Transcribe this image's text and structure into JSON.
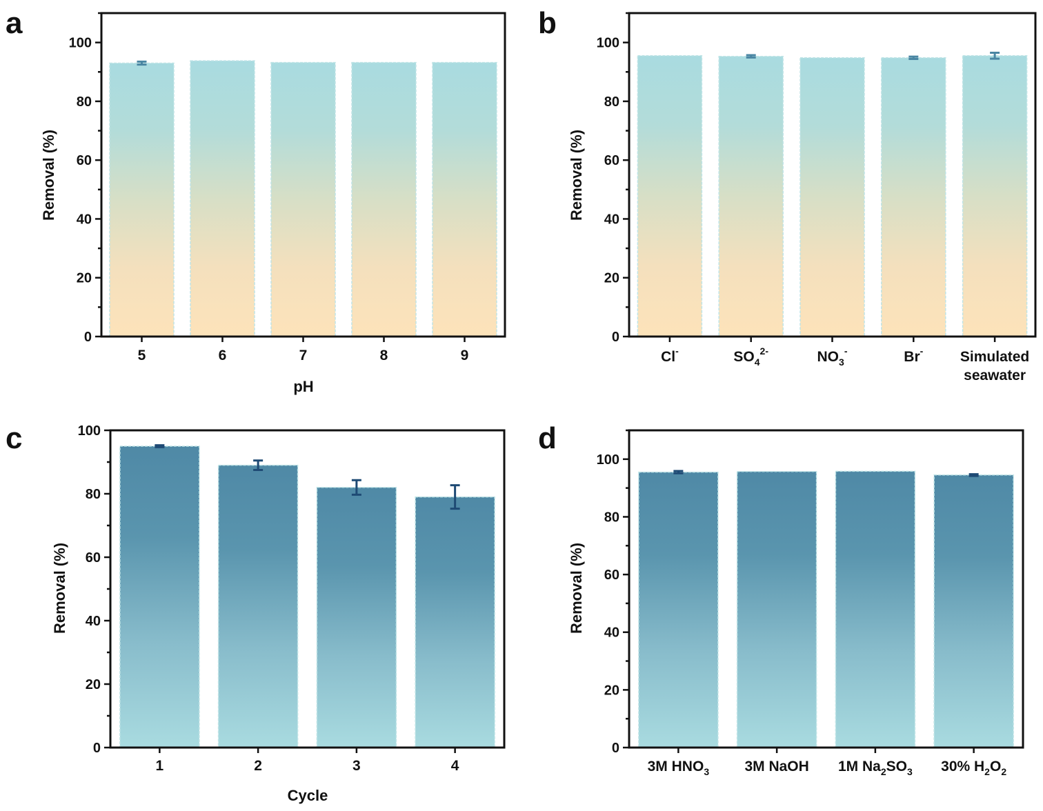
{
  "figure": {
    "panel_letters": [
      "a",
      "b",
      "c",
      "d"
    ]
  },
  "colors": {
    "teal_light": "#a9dbe0",
    "peach": "#fde3ba",
    "steel_blue": "#4f8aa7",
    "error_orange_panels": "#4a86a3",
    "error_dark": "#1e4a74"
  },
  "chart_data": [
    {
      "panel": "a",
      "type": "bar",
      "style": "warm",
      "title": "",
      "xlabel": "pH",
      "ylabel": "Removal (%)",
      "ylim": [
        0,
        110
      ],
      "yticks": [
        0,
        20,
        40,
        60,
        80,
        100
      ],
      "categories": [
        {
          "text": "5"
        },
        {
          "text": "6"
        },
        {
          "text": "7"
        },
        {
          "text": "8"
        },
        {
          "text": "9"
        }
      ],
      "values": [
        93.0,
        93.8,
        93.2,
        93.2,
        93.2
      ],
      "errors": [
        0.5,
        0,
        0,
        0,
        0
      ]
    },
    {
      "panel": "b",
      "type": "bar",
      "style": "warm",
      "title": "",
      "xlabel": "",
      "ylabel": "Removal (%)",
      "ylim": [
        0,
        110
      ],
      "yticks": [
        0,
        20,
        40,
        60,
        80,
        100
      ],
      "categories": [
        {
          "text": "Cl",
          "sup": "-"
        },
        {
          "text": "SO",
          "sub": "4",
          "sup": "2-"
        },
        {
          "text": "NO",
          "sub": "3",
          "sup": "-"
        },
        {
          "text": "Br",
          "sup": "-"
        },
        {
          "text": "Simulated",
          "line2": "seawater"
        }
      ],
      "values": [
        95.5,
        95.3,
        94.8,
        94.8,
        95.5
      ],
      "errors": [
        0,
        0.4,
        0,
        0.4,
        1.0
      ]
    },
    {
      "panel": "c",
      "type": "bar",
      "style": "cool",
      "title": "",
      "xlabel": "Cycle",
      "ylabel": "Removal (%)",
      "ylim": [
        0,
        100
      ],
      "yticks": [
        0,
        20,
        40,
        60,
        80,
        100
      ],
      "categories": [
        {
          "text": "1"
        },
        {
          "text": "2"
        },
        {
          "text": "3"
        },
        {
          "text": "4"
        }
      ],
      "values": [
        95.0,
        89.0,
        82.0,
        79.0
      ],
      "errors": [
        0.3,
        1.5,
        2.3,
        3.7
      ]
    },
    {
      "panel": "d",
      "type": "bar",
      "style": "cool",
      "title": "",
      "xlabel": "",
      "ylabel": "Removal (%)",
      "ylim": [
        0,
        110
      ],
      "yticks": [
        0,
        20,
        40,
        60,
        80,
        100
      ],
      "categories": [
        {
          "text": "3M HNO",
          "sub": "3"
        },
        {
          "text": "3M NaOH"
        },
        {
          "text": "1M Na",
          "sub": "2",
          "text2": "SO",
          "sub2": "3"
        },
        {
          "text": "30% H",
          "sub": "2",
          "text2": "O",
          "sub2": "2"
        }
      ],
      "values": [
        95.5,
        95.7,
        95.8,
        94.5
      ],
      "errors": [
        0.4,
        0,
        0,
        0.3
      ]
    }
  ]
}
